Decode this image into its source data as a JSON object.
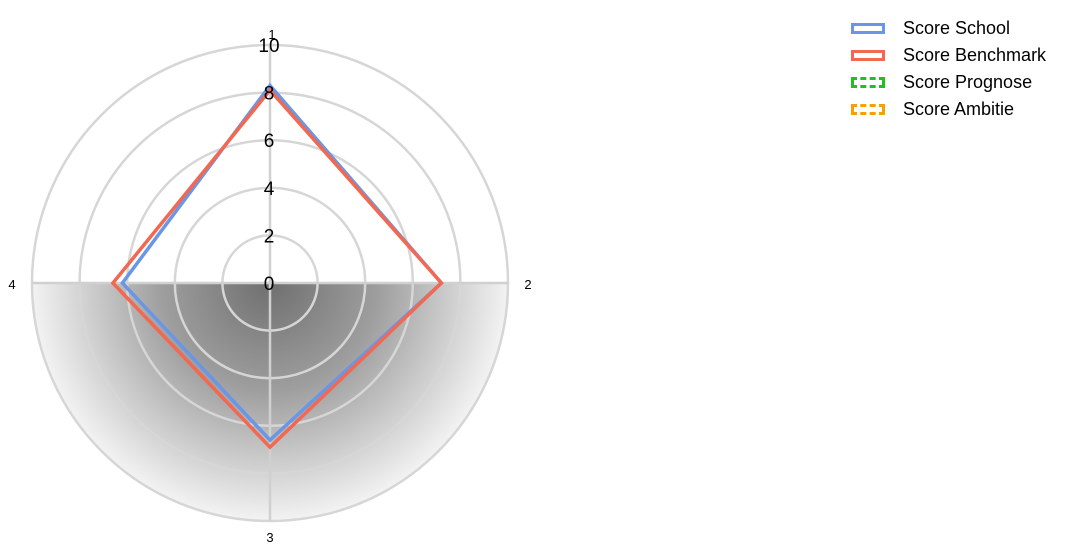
{
  "chart_data": {
    "type": "radar",
    "axes": [
      "1",
      "2",
      "3",
      "4"
    ],
    "rlim": [
      0,
      10
    ],
    "r_ticks": [
      "0",
      "2",
      "4",
      "6",
      "8",
      "10"
    ],
    "series": [
      {
        "name": "Score School",
        "values": [
          8.3,
          7.2,
          6.6,
          6.2
        ],
        "color": "#6a96e6",
        "dashed": false
      },
      {
        "name": "Score Benchmark",
        "values": [
          8.1,
          7.2,
          6.9,
          6.6
        ],
        "color": "#f26850",
        "dashed": false
      },
      {
        "name": "Score Prognose",
        "values": [],
        "color": "#22c01c",
        "dashed": true
      },
      {
        "name": "Score Ambitie",
        "values": [],
        "color": "#f5a100",
        "dashed": true
      }
    ],
    "grid": true,
    "legend_position": "top-right"
  }
}
